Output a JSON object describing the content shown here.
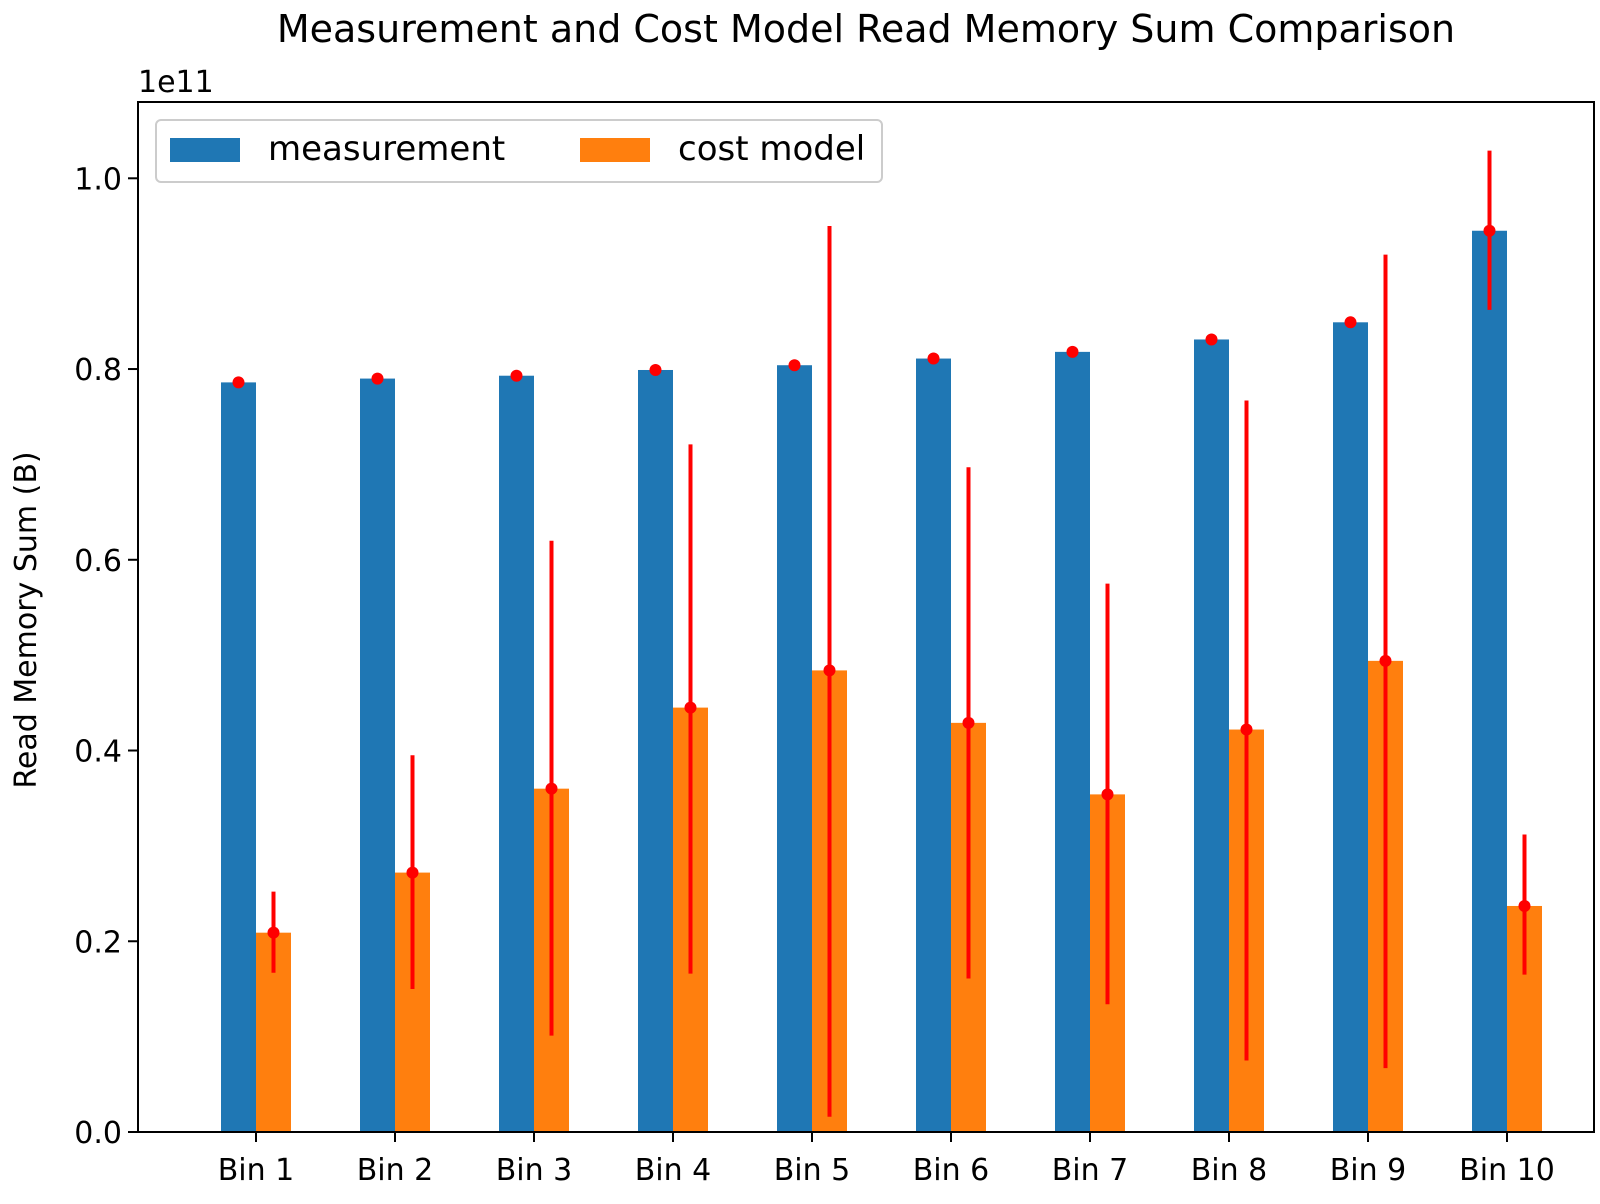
{
  "chart_data": {
    "type": "bar",
    "title": "Measurement and Cost Model Read Memory Sum Comparison",
    "xlabel": "",
    "ylabel": "Read Memory Sum (B)",
    "y_offset_label": "1e11",
    "ylim": [
      0,
      1.08
    ],
    "yticks": [
      0.0,
      0.2,
      0.4,
      0.6,
      0.8,
      1.0
    ],
    "ytick_labels": [
      "0.0",
      "0.2",
      "0.4",
      "0.6",
      "0.8",
      "1.0"
    ],
    "categories": [
      "Bin 1",
      "Bin 2",
      "Bin 3",
      "Bin 4",
      "Bin 5",
      "Bin 6",
      "Bin 7",
      "Bin 8",
      "Bin 9",
      "Bin 10"
    ],
    "series": [
      {
        "name": "measurement",
        "color": "#1f77b4",
        "values": [
          0.786,
          0.79,
          0.793,
          0.799,
          0.804,
          0.811,
          0.818,
          0.831,
          0.849,
          0.945
        ],
        "error_low": [
          0.786,
          0.79,
          0.793,
          0.799,
          0.804,
          0.811,
          0.818,
          0.831,
          0.845,
          0.862
        ],
        "error_high": [
          0.786,
          0.79,
          0.793,
          0.799,
          0.804,
          0.811,
          0.818,
          0.831,
          0.853,
          1.029
        ]
      },
      {
        "name": "cost model",
        "color": "#ff7f0e",
        "values": [
          0.209,
          0.272,
          0.36,
          0.445,
          0.484,
          0.429,
          0.354,
          0.422,
          0.494,
          0.237
        ],
        "error_low": [
          0.167,
          0.15,
          0.101,
          0.166,
          0.016,
          0.161,
          0.134,
          0.075,
          0.067,
          0.165
        ],
        "error_high": [
          0.252,
          0.395,
          0.62,
          0.721,
          0.95,
          0.697,
          0.575,
          0.767,
          0.92,
          0.312
        ]
      }
    ],
    "error_color": "#ff0000",
    "legend_position": "upper-left",
    "legend_columns": 2,
    "grid": false
  }
}
